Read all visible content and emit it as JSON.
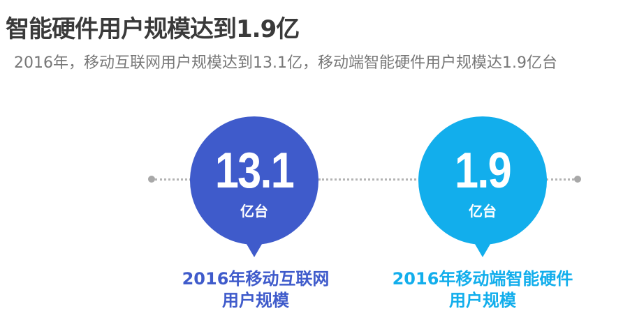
{
  "header": {
    "title": "智能硬件用户规模达到1.9亿",
    "subtitle": "2016年，移动互联网用户规模达到13.1亿，移动端智能硬件用户规模达1.9亿台"
  },
  "stats": [
    {
      "value": "13.1",
      "unit": "亿台",
      "caption_line1": "2016年移动互联网",
      "caption_line2": "用户规模",
      "color": "#3f5bcb"
    },
    {
      "value": "1.9",
      "unit": "亿台",
      "caption_line1": "2016年移动端智能硬件",
      "caption_line2": "用户规模",
      "color": "#12aeec"
    }
  ]
}
